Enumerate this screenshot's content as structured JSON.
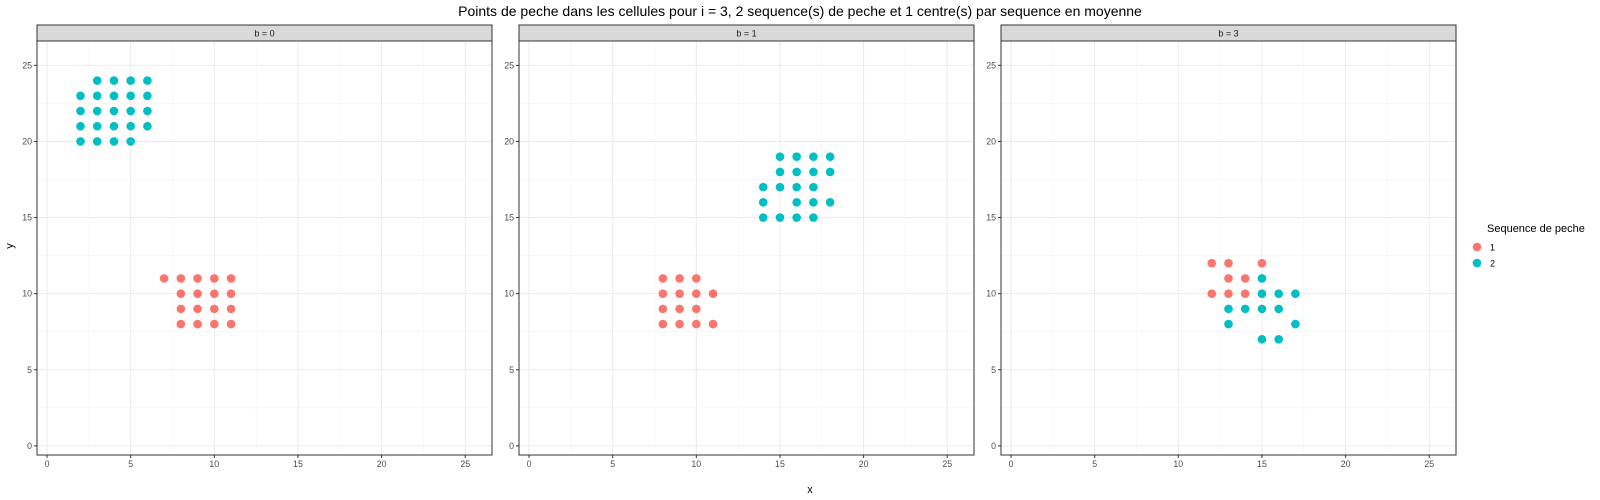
{
  "chart_data": {
    "type": "scatter",
    "title": "Points de peche dans les cellules pour i = 3, 2 sequence(s) de peche et 1 centre(s) par sequence en moyenne",
    "xlabel": "x",
    "ylabel": "y",
    "xlim": [
      -0.6,
      26.6
    ],
    "ylim": [
      -0.6,
      26.6
    ],
    "xticks": [
      0,
      5,
      10,
      15,
      20,
      25
    ],
    "yticks": [
      0,
      5,
      10,
      15,
      20,
      25
    ],
    "grid": true,
    "legend": {
      "title": "Sequence de peche",
      "position": "right",
      "entries": [
        {
          "label": "1",
          "color": "#F8766D"
        },
        {
          "label": "2",
          "color": "#00BFC4"
        }
      ]
    },
    "facets": [
      {
        "label": "b = 0",
        "series": [
          {
            "name": "1",
            "color": "#F8766D",
            "points": [
              [
                7,
                11
              ],
              [
                8,
                11
              ],
              [
                9,
                11
              ],
              [
                10,
                11
              ],
              [
                11,
                11
              ],
              [
                8,
                10
              ],
              [
                9,
                10
              ],
              [
                10,
                10
              ],
              [
                11,
                10
              ],
              [
                8,
                9
              ],
              [
                9,
                9
              ],
              [
                10,
                9
              ],
              [
                11,
                9
              ],
              [
                8,
                8
              ],
              [
                9,
                8
              ],
              [
                10,
                8
              ],
              [
                11,
                8
              ]
            ]
          },
          {
            "name": "2",
            "color": "#00BFC4",
            "points": [
              [
                3,
                24
              ],
              [
                4,
                24
              ],
              [
                5,
                24
              ],
              [
                6,
                24
              ],
              [
                2,
                23
              ],
              [
                3,
                23
              ],
              [
                4,
                23
              ],
              [
                5,
                23
              ],
              [
                6,
                23
              ],
              [
                2,
                22
              ],
              [
                3,
                22
              ],
              [
                4,
                22
              ],
              [
                5,
                22
              ],
              [
                6,
                22
              ],
              [
                2,
                21
              ],
              [
                3,
                21
              ],
              [
                4,
                21
              ],
              [
                5,
                21
              ],
              [
                6,
                21
              ],
              [
                2,
                20
              ],
              [
                3,
                20
              ],
              [
                4,
                20
              ],
              [
                5,
                20
              ]
            ]
          }
        ]
      },
      {
        "label": "b = 1",
        "series": [
          {
            "name": "1",
            "color": "#F8766D",
            "points": [
              [
                8,
                11
              ],
              [
                9,
                11
              ],
              [
                10,
                11
              ],
              [
                8,
                10
              ],
              [
                9,
                10
              ],
              [
                10,
                10
              ],
              [
                11,
                10
              ],
              [
                8,
                9
              ],
              [
                9,
                9
              ],
              [
                10,
                9
              ],
              [
                8,
                8
              ],
              [
                9,
                8
              ],
              [
                10,
                8
              ],
              [
                11,
                8
              ]
            ]
          },
          {
            "name": "2",
            "color": "#00BFC4",
            "points": [
              [
                15,
                19
              ],
              [
                16,
                19
              ],
              [
                17,
                19
              ],
              [
                18,
                19
              ],
              [
                15,
                18
              ],
              [
                16,
                18
              ],
              [
                17,
                18
              ],
              [
                18,
                18
              ],
              [
                14,
                17
              ],
              [
                15,
                17
              ],
              [
                16,
                17
              ],
              [
                17,
                17
              ],
              [
                14,
                16
              ],
              [
                16,
                16
              ],
              [
                17,
                16
              ],
              [
                18,
                16
              ],
              [
                14,
                15
              ],
              [
                15,
                15
              ],
              [
                16,
                15
              ],
              [
                17,
                15
              ]
            ]
          }
        ]
      },
      {
        "label": "b = 3",
        "series": [
          {
            "name": "1",
            "color": "#F8766D",
            "points": [
              [
                12,
                12
              ],
              [
                13,
                12
              ],
              [
                15,
                12
              ],
              [
                13,
                11
              ],
              [
                14,
                11
              ],
              [
                12,
                10
              ],
              [
                13,
                10
              ],
              [
                14,
                10
              ]
            ]
          },
          {
            "name": "2",
            "color": "#00BFC4",
            "points": [
              [
                15,
                11
              ],
              [
                15,
                10
              ],
              [
                16,
                10
              ],
              [
                17,
                10
              ],
              [
                13,
                9
              ],
              [
                14,
                9
              ],
              [
                15,
                9
              ],
              [
                16,
                9
              ],
              [
                13,
                8
              ],
              [
                17,
                8
              ],
              [
                15,
                7
              ],
              [
                16,
                7
              ]
            ]
          }
        ]
      }
    ]
  }
}
